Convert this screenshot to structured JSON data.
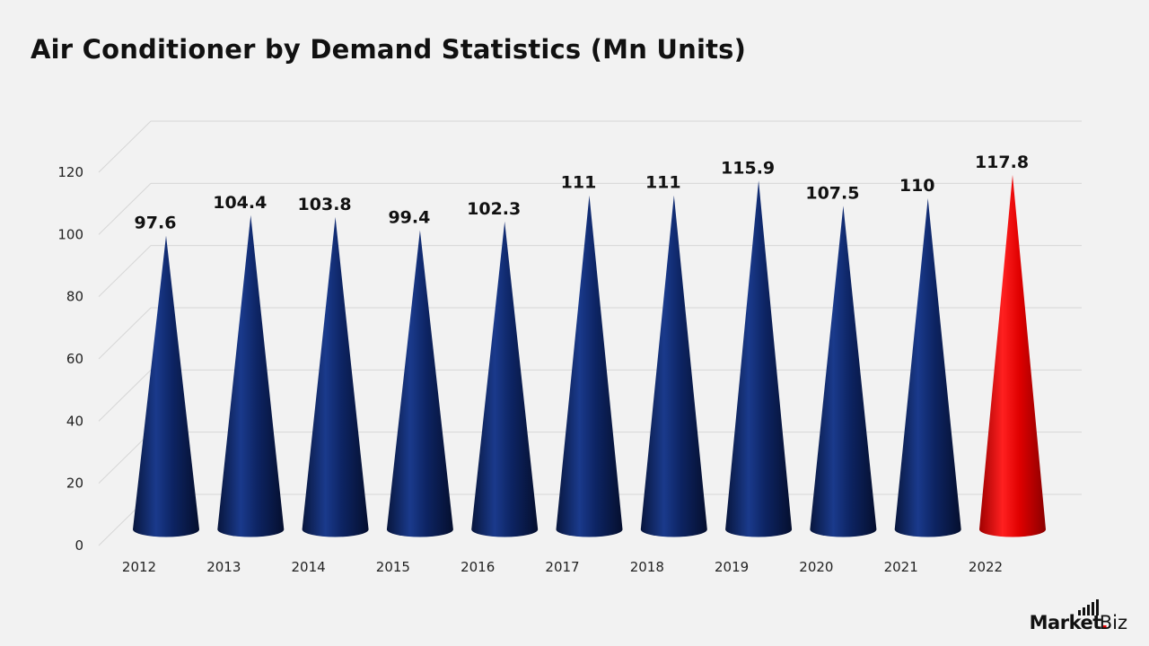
{
  "chart_data": {
    "type": "bar",
    "subtype": "3d-cone",
    "title": "Air Conditioner by Demand Statistics (Mn Units)",
    "categories": [
      "2012",
      "2013",
      "2014",
      "2015",
      "2016",
      "2017",
      "2018",
      "2019",
      "2020",
      "2021",
      "2022"
    ],
    "values": [
      97.6,
      104.4,
      103.8,
      99.4,
      102.3,
      111,
      111,
      115.9,
      107.5,
      110,
      117.8
    ],
    "data_labels": [
      "97.6",
      "104.4",
      "103.8",
      "99.4",
      "102.3",
      "111",
      "111",
      "115.9",
      "107.5",
      "110",
      "117.8"
    ],
    "y_ticks": [
      "0",
      "20",
      "40",
      "60",
      "80",
      "100",
      "120"
    ],
    "ylim": [
      0,
      120
    ],
    "grid": true,
    "legend": "none",
    "colors": {
      "default": "#0d2463",
      "highlight": "#e00000",
      "highlight_index": 10
    }
  },
  "brand": {
    "main": "Market",
    "dot": ".",
    "sub": "Biz"
  }
}
